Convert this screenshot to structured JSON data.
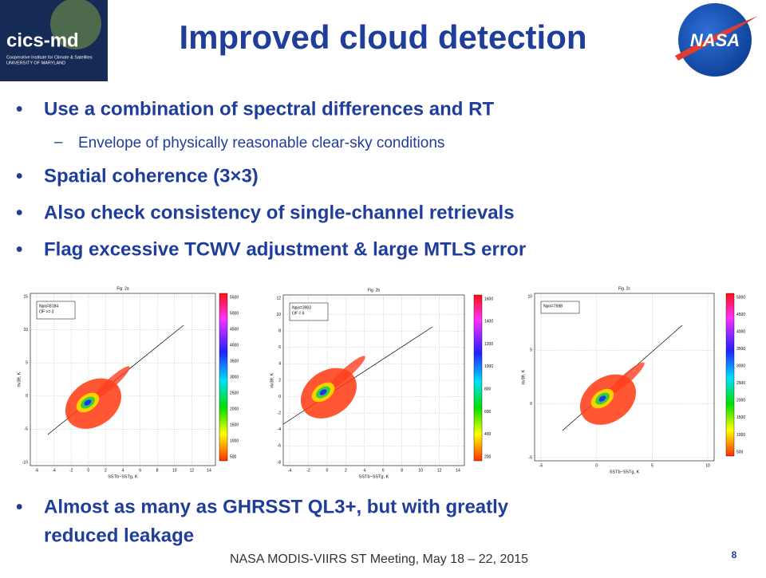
{
  "header": {
    "title": "Improved cloud detection",
    "left_logo": {
      "name": "cics-md",
      "line1": "Cooperative Institute for Climate & Satellites",
      "line2": "UNIVERSITY OF MARYLAND"
    },
    "right_logo": "NASA"
  },
  "bullets": [
    {
      "text": "Use a combination of spectral differences and RT",
      "sub": [
        "Envelope of physically reasonable clear-sky conditions"
      ]
    },
    {
      "text": "Spatial coherence (3×3)"
    },
    {
      "text": "Also check consistency of single-channel retrievals"
    },
    {
      "text": "Flag excessive TCWV adjustment & large MTLS error"
    }
  ],
  "figures": [
    {
      "title": "Fig. 2a",
      "xlabel": "SSTb−SSTg, K",
      "ylabel": "rtv39, K",
      "stats": [
        "Npix=8184",
        "OF >= 3"
      ],
      "xticks": [
        -6,
        -4,
        -2,
        0,
        2,
        4,
        6,
        8,
        10,
        12,
        14
      ],
      "yticks": [
        -10,
        -5,
        0,
        5,
        10,
        15
      ],
      "colorbar": [
        500,
        1000,
        1500,
        2000,
        2500,
        3000,
        3500,
        4000,
        4500,
        5000,
        5500
      ]
    },
    {
      "title": "Fig. 2b",
      "xlabel": "SSTb−SSTg, K",
      "ylabel": "rtv39, K",
      "stats": [
        "Npix=3903",
        "OF = 6"
      ],
      "xticks": [
        -4,
        -2,
        0,
        2,
        4,
        6,
        8,
        10,
        12,
        14
      ],
      "yticks": [
        -8,
        -6,
        -4,
        -2,
        0,
        2,
        4,
        6,
        8,
        10,
        12
      ],
      "colorbar": [
        200,
        400,
        600,
        800,
        1000,
        1200,
        1400,
        1600
      ]
    },
    {
      "title": "Fig. 2c",
      "xlabel": "SSTb−SSTg, K",
      "ylabel": "rtv39, K",
      "stats": [
        "Npix=7698"
      ],
      "xticks": [
        -5,
        0,
        5,
        10
      ],
      "yticks": [
        -5,
        0,
        5,
        10
      ],
      "colorbar": [
        500,
        1000,
        1500,
        2000,
        2500,
        3000,
        3500,
        4000,
        4500,
        5000
      ]
    }
  ],
  "bottom_bullet": [
    "Almost as many as GHRSST QL3+, but with greatly",
    "reduced leakage"
  ],
  "footer": "NASA MODIS-VIIRS ST Meeting, May 18 – 22, 2015",
  "page_number": 8
}
